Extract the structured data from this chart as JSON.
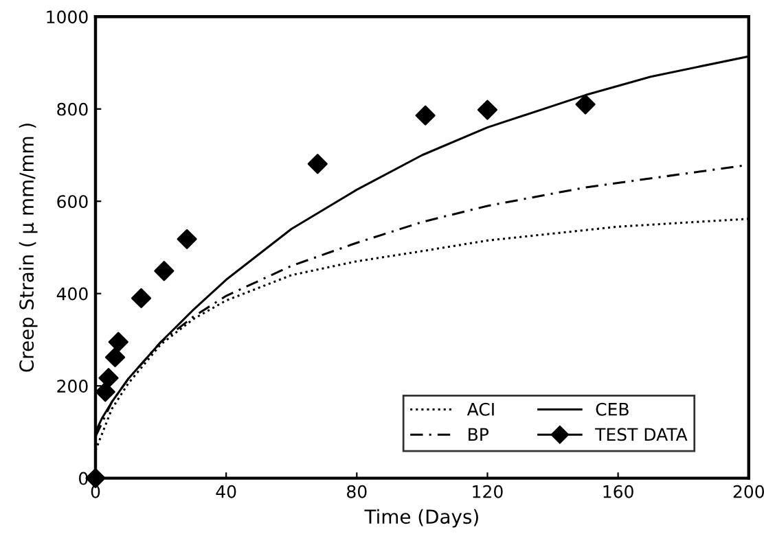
{
  "chart_data": {
    "type": "line",
    "xlabel": "Time (Days)",
    "ylabel": "Creep Strain ( μ mm/mm )",
    "xlim": [
      0,
      200
    ],
    "ylim": [
      0,
      1000
    ],
    "xticks": [
      0,
      40,
      80,
      120,
      160,
      200
    ],
    "yticks": [
      0,
      200,
      400,
      600,
      800,
      1000
    ],
    "grid": false,
    "legend": "bottom right",
    "series": [
      {
        "name": "ACI",
        "color": "#000000",
        "line_style": "dotted",
        "marker": "none",
        "x": [
          0,
          5,
          10,
          20,
          30,
          40,
          60,
          80,
          100,
          120,
          160,
          200
        ],
        "values": [
          60,
          150,
          205,
          290,
          345,
          385,
          440,
          470,
          492,
          515,
          545,
          562
        ]
      },
      {
        "name": "BP",
        "color": "#000000",
        "line_style": "dashed",
        "marker": "none",
        "x": [
          0,
          5,
          10,
          20,
          30,
          40,
          60,
          80,
          100,
          120,
          150,
          200
        ],
        "values": [
          90,
          165,
          215,
          295,
          350,
          395,
          460,
          510,
          555,
          590,
          630,
          679
        ]
      },
      {
        "name": "CEB",
        "color": "#000000",
        "line_style": "solid",
        "marker": "none",
        "x": [
          0,
          2,
          5,
          10,
          20,
          30,
          40,
          60,
          80,
          100,
          120,
          150,
          170,
          200
        ],
        "values": [
          100,
          130,
          165,
          215,
          295,
          365,
          430,
          540,
          625,
          700,
          760,
          830,
          870,
          914
        ]
      },
      {
        "name": "TEST DATA",
        "color": "#000000",
        "line_style": "solid",
        "marker": "diamond",
        "type": "scatter",
        "x": [
          0,
          3,
          4,
          6,
          7,
          14,
          21,
          28,
          68,
          101,
          120,
          150
        ],
        "values": [
          0,
          187,
          217,
          262,
          295,
          390,
          449,
          518,
          681,
          786,
          798,
          810
        ]
      }
    ]
  }
}
